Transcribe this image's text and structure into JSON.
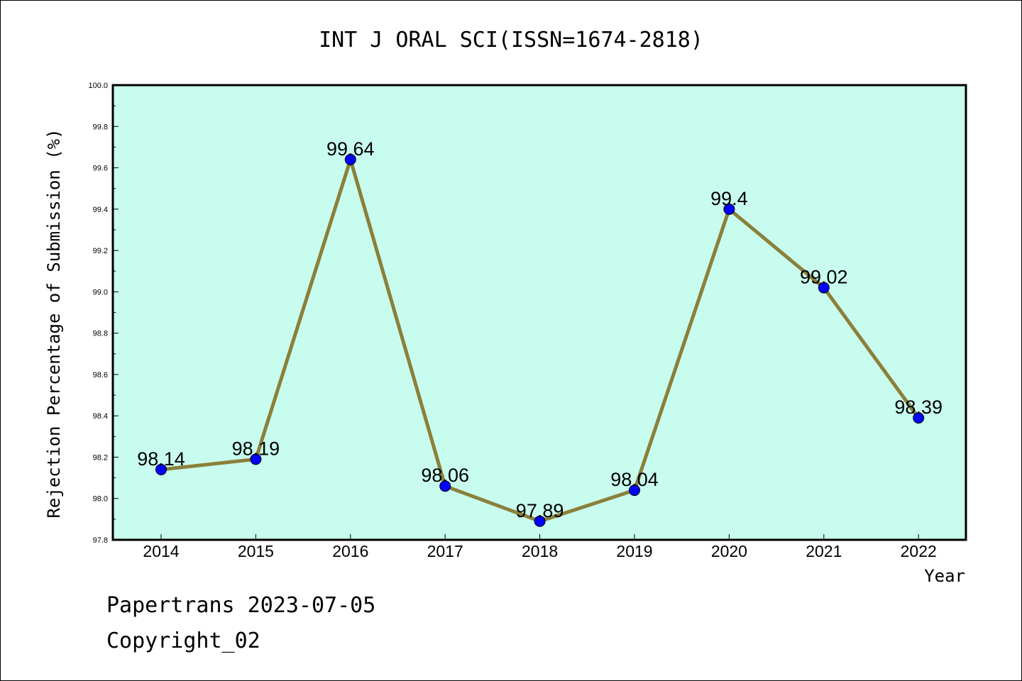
{
  "chart_data": {
    "type": "line",
    "title": "INT J ORAL SCI(ISSN=1674-2818)",
    "xlabel": "Year",
    "ylabel": "Rejection Percentage of Submission (%)",
    "categories": [
      "2014",
      "2015",
      "2016",
      "2017",
      "2018",
      "2019",
      "2020",
      "2021",
      "2022"
    ],
    "series": [
      {
        "values": [
          98.14,
          98.19,
          99.64,
          98.06,
          97.89,
          98.04,
          99.4,
          99.02,
          98.39
        ],
        "data_labels": [
          "98.14",
          "98.19",
          "99.64",
          "98.06",
          "97.89",
          "98.04",
          "99.4",
          "99.02",
          "98.39"
        ]
      }
    ],
    "ylim": [
      97.8,
      100.0
    ],
    "yticks": [
      "97.8",
      "98.0",
      "98.2",
      "98.4",
      "98.6",
      "98.8",
      "99.0",
      "99.2",
      "99.4",
      "99.6",
      "99.8",
      "100.0"
    ],
    "grid": false,
    "colors": {
      "plot_background": "#c8fcee",
      "line": "#8b7f3a",
      "marker": "#0000ff"
    }
  },
  "footer": {
    "line1": "Papertrans 2023-07-05",
    "line2": "Copyright_02"
  }
}
